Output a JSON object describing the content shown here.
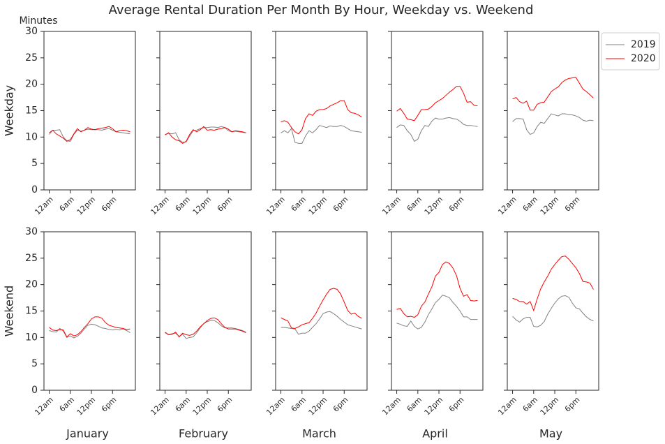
{
  "title": "Average Rental Duration Per Month By Hour, Weekday vs. Weekend",
  "ylabel": "Minutes",
  "rows": [
    "Weekday",
    "Weekend"
  ],
  "columns": [
    "January",
    "February",
    "March",
    "April",
    "May"
  ],
  "chart_data": [
    {
      "type": "line",
      "x": [
        0,
        1,
        2,
        3,
        4,
        5,
        6,
        7,
        8,
        9,
        10,
        11,
        12,
        13,
        14,
        15,
        16,
        17,
        18,
        19,
        20,
        21,
        22,
        23
      ],
      "xlim": [
        -1.5,
        24.5
      ],
      "xticks": [
        {
          "value": 0,
          "label": "12am"
        },
        {
          "value": 6,
          "label": "6am"
        },
        {
          "value": 12,
          "label": "12pm"
        },
        {
          "value": 18,
          "label": "6pm"
        }
      ],
      "ylim": [
        0,
        30
      ],
      "yticks": [
        0,
        5,
        10,
        15,
        20,
        25,
        30
      ],
      "series": [
        {
          "name": "2019",
          "color": "#808080",
          "values": [
            10.5,
            11.3,
            11.3,
            11.4,
            10,
            9.3,
            9.2,
            10.5,
            11.3,
            11.1,
            11.3,
            11.5,
            11.4,
            11.4,
            11.4,
            11.3,
            11.5,
            11.6,
            11.3,
            11,
            10.9,
            10.8,
            10.7,
            10.6
          ]
        },
        {
          "name": "2020",
          "color": "#ff0000",
          "values": [
            10.8,
            11.3,
            10.6,
            10.2,
            9.8,
            9.2,
            9.5,
            10.6,
            11.6,
            11,
            11.3,
            11.8,
            11.5,
            11.4,
            11.6,
            11.7,
            11.8,
            12,
            11.6,
            11,
            11.2,
            11.3,
            11.2,
            11
          ]
        }
      ]
    },
    {
      "type": "line",
      "x": [
        0,
        1,
        2,
        3,
        4,
        5,
        6,
        7,
        8,
        9,
        10,
        11,
        12,
        13,
        14,
        15,
        16,
        17,
        18,
        19,
        20,
        21,
        22,
        23
      ],
      "xlim": [
        -1.5,
        24.5
      ],
      "xticks": [
        {
          "value": 0,
          "label": "12am"
        },
        {
          "value": 6,
          "label": "6am"
        },
        {
          "value": 12,
          "label": "12pm"
        },
        {
          "value": 18,
          "label": "6pm"
        }
      ],
      "ylim": [
        0,
        30
      ],
      "yticks": [
        0,
        5,
        10,
        15,
        20,
        25,
        30
      ],
      "series": [
        {
          "name": "2019",
          "color": "#808080",
          "values": [
            10.5,
            10.7,
            10.6,
            10.8,
            9.5,
            9,
            9.1,
            10.2,
            11.2,
            11.3,
            11.6,
            11.8,
            11.8,
            11.9,
            11.9,
            11.8,
            12,
            11.8,
            11.2,
            11,
            11.1,
            11,
            10.9,
            10.8
          ]
        },
        {
          "name": "2020",
          "color": "#ff0000",
          "values": [
            10.4,
            10.8,
            10,
            9.5,
            9.3,
            8.8,
            9.2,
            10.5,
            11.4,
            11,
            11.4,
            12,
            11.3,
            11.4,
            11.3,
            11.5,
            11.6,
            11.8,
            11.5,
            11,
            11.2,
            11.1,
            11,
            10.8
          ]
        }
      ]
    },
    {
      "type": "line",
      "x": [
        0,
        1,
        2,
        3,
        4,
        5,
        6,
        7,
        8,
        9,
        10,
        11,
        12,
        13,
        14,
        15,
        16,
        17,
        18,
        19,
        20,
        21,
        22,
        23
      ],
      "xlim": [
        -1.5,
        24.5
      ],
      "xticks": [
        {
          "value": 0,
          "label": "12am"
        },
        {
          "value": 6,
          "label": "6am"
        },
        {
          "value": 12,
          "label": "12pm"
        },
        {
          "value": 18,
          "label": "6pm"
        }
      ],
      "ylim": [
        0,
        30
      ],
      "yticks": [
        0,
        5,
        10,
        15,
        20,
        25,
        30
      ],
      "series": [
        {
          "name": "2019",
          "color": "#808080",
          "values": [
            10.8,
            11.2,
            10.8,
            11.6,
            9,
            8.8,
            8.8,
            10.2,
            11.2,
            10.8,
            11.4,
            12.2,
            12,
            11.8,
            12.1,
            12,
            12,
            12.2,
            12,
            11.6,
            11.2,
            11.1,
            11,
            10.9
          ]
        },
        {
          "name": "2020",
          "color": "#ff0000",
          "values": [
            12.9,
            13.1,
            12.8,
            11.8,
            11,
            10.6,
            11.4,
            13.5,
            14.4,
            14.1,
            14.9,
            15.2,
            15.2,
            15.4,
            15.9,
            16.2,
            16.5,
            16.9,
            16.9,
            15.2,
            14.6,
            14.5,
            14.2,
            13.8
          ]
        }
      ]
    },
    {
      "type": "line",
      "x": [
        0,
        1,
        2,
        3,
        4,
        5,
        6,
        7,
        8,
        9,
        10,
        11,
        12,
        13,
        14,
        15,
        16,
        17,
        18,
        19,
        20,
        21,
        22,
        23
      ],
      "xlim": [
        -1.5,
        24.5
      ],
      "xticks": [
        {
          "value": 0,
          "label": "12am"
        },
        {
          "value": 6,
          "label": "6am"
        },
        {
          "value": 12,
          "label": "12pm"
        },
        {
          "value": 18,
          "label": "6pm"
        }
      ],
      "ylim": [
        0,
        30
      ],
      "yticks": [
        0,
        5,
        10,
        15,
        20,
        25,
        30
      ],
      "series": [
        {
          "name": "2019",
          "color": "#808080",
          "values": [
            11.8,
            12.3,
            12.2,
            11.2,
            10.5,
            9.2,
            9.6,
            11.2,
            12.2,
            12,
            13,
            13.6,
            13.4,
            13.4,
            13.6,
            13.7,
            13.5,
            13.4,
            13,
            12.4,
            12.2,
            12.2,
            12.1,
            12
          ]
        },
        {
          "name": "2020",
          "color": "#ff0000",
          "values": [
            14.9,
            15.4,
            14.5,
            13.4,
            13.3,
            13.1,
            14.1,
            15.2,
            15.2,
            15.3,
            15.8,
            16.5,
            16.9,
            17.3,
            17.9,
            18.5,
            19,
            19.6,
            19.6,
            18.3,
            16.6,
            16.7,
            16,
            15.9
          ]
        }
      ]
    },
    {
      "type": "line",
      "x": [
        0,
        1,
        2,
        3,
        4,
        5,
        6,
        7,
        8,
        9,
        10,
        11,
        12,
        13,
        14,
        15,
        16,
        17,
        18,
        19,
        20,
        21,
        22,
        23
      ],
      "xlim": [
        -1.5,
        24.5
      ],
      "xticks": [
        {
          "value": 0,
          "label": "12am"
        },
        {
          "value": 6,
          "label": "6am"
        },
        {
          "value": 12,
          "label": "12pm"
        },
        {
          "value": 18,
          "label": "6pm"
        }
      ],
      "ylim": [
        0,
        30
      ],
      "yticks": [
        0,
        5,
        10,
        15,
        20,
        25,
        30
      ],
      "series": [
        {
          "name": "2019",
          "color": "#808080",
          "values": [
            12.9,
            13.5,
            13.5,
            13.4,
            11.4,
            10.5,
            10.8,
            12,
            12.8,
            12.6,
            13.5,
            14.4,
            14.2,
            14,
            14.4,
            14.4,
            14.2,
            14.2,
            14,
            13.7,
            13.2,
            13,
            13.2,
            13.1
          ]
        },
        {
          "name": "2020",
          "color": "#ff0000",
          "values": [
            17.2,
            17.5,
            16.7,
            16.4,
            16.8,
            15.1,
            15.1,
            16.2,
            16.5,
            16.6,
            17.6,
            18.6,
            19.1,
            19.5,
            20.3,
            20.8,
            21.1,
            21.2,
            21.3,
            20.2,
            19.1,
            18.6,
            18,
            17.4
          ]
        }
      ]
    },
    {
      "type": "line",
      "x": [
        0,
        1,
        2,
        3,
        4,
        5,
        6,
        7,
        8,
        9,
        10,
        11,
        12,
        13,
        14,
        15,
        16,
        17,
        18,
        19,
        20,
        21,
        22,
        23
      ],
      "xlim": [
        -1.5,
        24.5
      ],
      "xticks": [
        {
          "value": 0,
          "label": "12am"
        },
        {
          "value": 6,
          "label": "6am"
        },
        {
          "value": 12,
          "label": "12pm"
        },
        {
          "value": 18,
          "label": "6pm"
        }
      ],
      "ylim": [
        0,
        30
      ],
      "yticks": [
        0,
        5,
        10,
        15,
        20,
        25,
        30
      ],
      "series": [
        {
          "name": "2019",
          "color": "#808080",
          "values": [
            11.3,
            11.1,
            11,
            11.7,
            11.2,
            10,
            10.3,
            9.9,
            10.2,
            10.8,
            11.6,
            12.3,
            12.5,
            12.4,
            12.1,
            11.8,
            11.7,
            11.5,
            11.4,
            11.5,
            11.4,
            11.6,
            11.3,
            10.9
          ]
        },
        {
          "name": "2020",
          "color": "#ff0000",
          "values": [
            11.9,
            11.4,
            11.3,
            11.5,
            11.4,
            10.1,
            10.7,
            10.3,
            10.5,
            11.1,
            11.9,
            12.6,
            13.5,
            13.9,
            13.9,
            13.6,
            12.8,
            12.3,
            12.1,
            11.9,
            11.8,
            11.7,
            11.5,
            11.6
          ]
        }
      ]
    },
    {
      "type": "line",
      "x": [
        0,
        1,
        2,
        3,
        4,
        5,
        6,
        7,
        8,
        9,
        10,
        11,
        12,
        13,
        14,
        15,
        16,
        17,
        18,
        19,
        20,
        21,
        22,
        23
      ],
      "xlim": [
        -1.5,
        24.5
      ],
      "xticks": [
        {
          "value": 0,
          "label": "12am"
        },
        {
          "value": 6,
          "label": "6am"
        },
        {
          "value": 12,
          "label": "12pm"
        },
        {
          "value": 18,
          "label": "6pm"
        }
      ],
      "ylim": [
        0,
        30
      ],
      "yticks": [
        0,
        5,
        10,
        15,
        20,
        25,
        30
      ],
      "series": [
        {
          "name": "2019",
          "color": "#808080",
          "values": [
            10.9,
            10.5,
            10.7,
            10.8,
            10.2,
            10.6,
            9.8,
            10,
            10.1,
            10.9,
            11.8,
            12.6,
            13,
            13.2,
            13.2,
            12.8,
            12.2,
            11.8,
            11.8,
            11.8,
            11.7,
            11.5,
            11.3,
            11
          ]
        },
        {
          "name": "2020",
          "color": "#ff0000",
          "values": [
            11,
            10.5,
            10.6,
            11,
            10.1,
            10.8,
            10.5,
            10.4,
            10.6,
            11.2,
            12,
            12.6,
            13.2,
            13.6,
            13.7,
            13.4,
            12.6,
            11.9,
            11.6,
            11.6,
            11.6,
            11.4,
            11.2,
            10.9
          ]
        }
      ]
    },
    {
      "type": "line",
      "x": [
        0,
        1,
        2,
        3,
        4,
        5,
        6,
        7,
        8,
        9,
        10,
        11,
        12,
        13,
        14,
        15,
        16,
        17,
        18,
        19,
        20,
        21,
        22,
        23
      ],
      "xlim": [
        -1.5,
        24.5
      ],
      "xticks": [
        {
          "value": 0,
          "label": "12am"
        },
        {
          "value": 6,
          "label": "6am"
        },
        {
          "value": 12,
          "label": "12pm"
        },
        {
          "value": 18,
          "label": "6pm"
        }
      ],
      "ylim": [
        0,
        30
      ],
      "yticks": [
        0,
        5,
        10,
        15,
        20,
        25,
        30
      ],
      "series": [
        {
          "name": "2019",
          "color": "#808080",
          "values": [
            11.9,
            11.9,
            11.8,
            11.7,
            11.6,
            10.6,
            10.8,
            10.8,
            11.2,
            11.9,
            12.6,
            13.5,
            14.5,
            14.8,
            14.9,
            14.5,
            14,
            13.4,
            12.9,
            12.4,
            12.2,
            12,
            11.8,
            11.6
          ]
        },
        {
          "name": "2020",
          "color": "#ff0000",
          "values": [
            13.7,
            13.4,
            13.1,
            11.8,
            11.7,
            12,
            12.4,
            12.6,
            12.8,
            13.6,
            14.6,
            15.9,
            17.1,
            18.2,
            19.1,
            19.3,
            19.1,
            18.2,
            16.7,
            15.1,
            14.4,
            14.6,
            14,
            13.6
          ]
        }
      ]
    },
    {
      "type": "line",
      "x": [
        0,
        1,
        2,
        3,
        4,
        5,
        6,
        7,
        8,
        9,
        10,
        11,
        12,
        13,
        14,
        15,
        16,
        17,
        18,
        19,
        20,
        21,
        22,
        23
      ],
      "xlim": [
        -1.5,
        24.5
      ],
      "xticks": [
        {
          "value": 0,
          "label": "12am"
        },
        {
          "value": 6,
          "label": "6am"
        },
        {
          "value": 12,
          "label": "12pm"
        },
        {
          "value": 18,
          "label": "6pm"
        }
      ],
      "ylim": [
        0,
        30
      ],
      "yticks": [
        0,
        5,
        10,
        15,
        20,
        25,
        30
      ],
      "series": [
        {
          "name": "2019",
          "color": "#808080",
          "values": [
            12.7,
            12.5,
            12.2,
            12.1,
            13.1,
            12.1,
            11.6,
            11.9,
            12.9,
            14.3,
            15.4,
            16.6,
            17.2,
            18,
            17.8,
            17.5,
            16.6,
            15.9,
            15,
            13.9,
            13.9,
            13.4,
            13.4,
            13.4
          ]
        },
        {
          "name": "2020",
          "color": "#ff0000",
          "values": [
            15.3,
            15.5,
            14.5,
            13.9,
            14,
            13.8,
            14.3,
            15.9,
            16.7,
            18.2,
            19.6,
            21.6,
            22.3,
            23.8,
            24.3,
            24,
            23.1,
            21.7,
            19.3,
            17.8,
            18.1,
            17,
            16.9,
            17
          ]
        }
      ]
    },
    {
      "type": "line",
      "x": [
        0,
        1,
        2,
        3,
        4,
        5,
        6,
        7,
        8,
        9,
        10,
        11,
        12,
        13,
        14,
        15,
        16,
        17,
        18,
        19,
        20,
        21,
        22,
        23
      ],
      "xlim": [
        -1.5,
        24.5
      ],
      "xticks": [
        {
          "value": 0,
          "label": "12am"
        },
        {
          "value": 6,
          "label": "6am"
        },
        {
          "value": 12,
          "label": "12pm"
        },
        {
          "value": 18,
          "label": "6pm"
        }
      ],
      "ylim": [
        0,
        30
      ],
      "yticks": [
        0,
        5,
        10,
        15,
        20,
        25,
        30
      ],
      "series": [
        {
          "name": "2019",
          "color": "#808080",
          "values": [
            14,
            13.3,
            12.9,
            13.5,
            13.8,
            13.8,
            12.1,
            12,
            12.3,
            13,
            14.4,
            15.5,
            16.5,
            17.3,
            17.8,
            17.9,
            17.6,
            16.5,
            15.6,
            15.4,
            14.6,
            13.9,
            13.4,
            13.1
          ]
        },
        {
          "name": "2020",
          "color": "#ff0000",
          "values": [
            17.4,
            17.2,
            16.8,
            16.8,
            16.3,
            16.8,
            15.1,
            17.3,
            19.2,
            20.5,
            21.6,
            22.9,
            23.8,
            24.6,
            25.3,
            25.4,
            24.8,
            24,
            23.2,
            22.1,
            20.6,
            20.5,
            20.3,
            19.1
          ]
        }
      ]
    }
  ]
}
